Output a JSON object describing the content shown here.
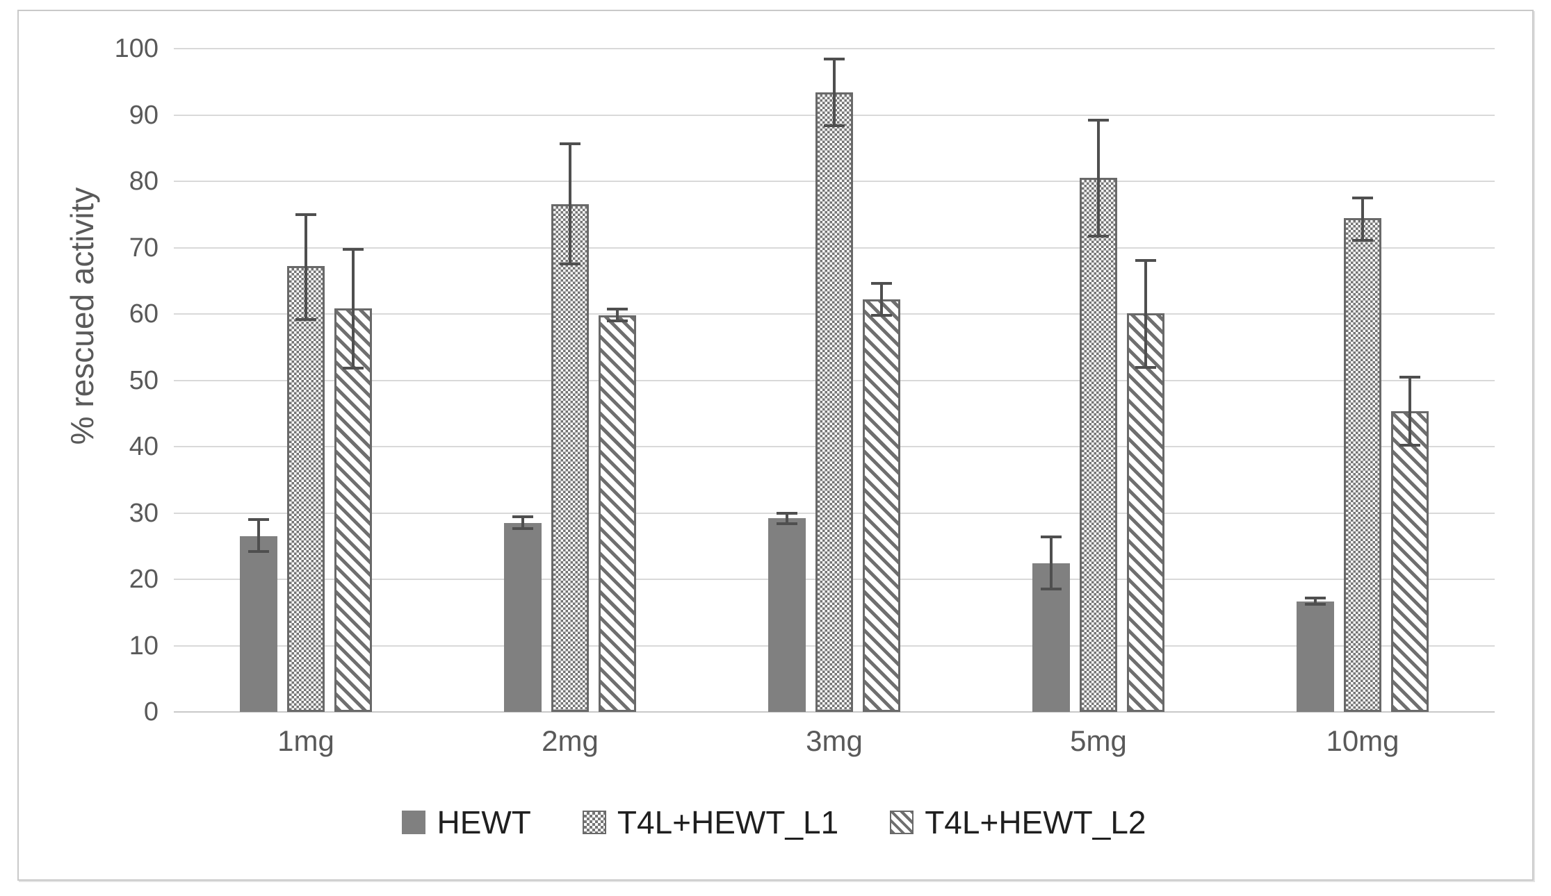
{
  "figure": {
    "background": "#ffffff",
    "border_color": "#c9c9c9"
  },
  "colors": {
    "axis_text": "#595959",
    "legend_text": "#1f1f1f",
    "gridline": "#d9d9d9",
    "baseline": "#c9c9c9",
    "bar_solid_fill": "#808080",
    "pattern_dark": "#757575",
    "bar_outline": "#696969",
    "error_bar": "#4f4f4f"
  },
  "chart_data": {
    "type": "bar",
    "title": "",
    "xlabel": "",
    "ylabel": "% rescued activity",
    "ylim": [
      0,
      100
    ],
    "yticks": [
      0,
      10,
      20,
      30,
      40,
      50,
      60,
      70,
      80,
      90,
      100
    ],
    "grid": true,
    "legend_position": "bottom",
    "categories": [
      "1mg",
      "2mg",
      "3mg",
      "5mg",
      "10mg"
    ],
    "series": [
      {
        "name": "HEWT",
        "pattern": "solid",
        "values": [
          26.5,
          28.5,
          29.2,
          22.4,
          16.7
        ],
        "error_plus": [
          2.7,
          1.1,
          1.0,
          4.2,
          0.7
        ],
        "error_minus": [
          2.5,
          1.1,
          1.0,
          4.1,
          0.7
        ]
      },
      {
        "name": "T4L+HEWT_L1",
        "pattern": "checker",
        "values": [
          67.2,
          76.5,
          93.4,
          80.5,
          74.4
        ],
        "error_plus": [
          8.0,
          9.4,
          5.2,
          8.9,
          3.3
        ],
        "error_minus": [
          8.2,
          9.2,
          5.2,
          9.0,
          3.5
        ]
      },
      {
        "name": "T4L+HEWT_L2",
        "pattern": "diagonal",
        "values": [
          60.8,
          59.8,
          62.2,
          60.1,
          45.3
        ],
        "error_plus": [
          9.1,
          1.1,
          2.6,
          8.2,
          5.4
        ],
        "error_minus": [
          9.2,
          1.1,
          2.6,
          8.4,
          5.3
        ]
      }
    ]
  }
}
